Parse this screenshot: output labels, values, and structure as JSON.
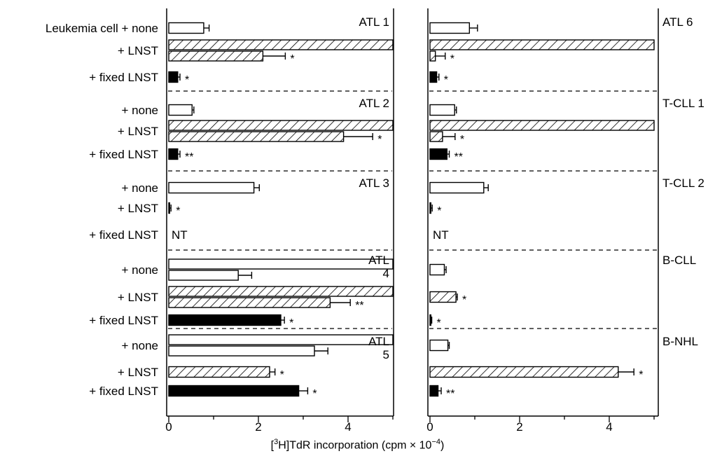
{
  "chart_data": {
    "type": "bar",
    "orientation": "horizontal",
    "xlabel": {
      "prefix": "[",
      "sup": "3",
      "main": "H]TdR incorporation (cpm × 10",
      "exp": "−4",
      "suffix": ")"
    },
    "xlim": [
      0,
      5
    ],
    "xticks": [
      "0",
      "2",
      "4"
    ],
    "not_tested_label": "NT",
    "series_styles": {
      "none": "open",
      "LNST": "hatched",
      "fixed LNST": "filled"
    },
    "row_labels": [
      "Leukemia cell + none",
      "+ LNST",
      "+ fixed LNST",
      "+ none",
      "+ LNST",
      "+ fixed LNST",
      "+ none",
      "+ LNST",
      "+ fixed LNST",
      "+ none",
      "+ LNST",
      "+ fixed LNST",
      "+ none",
      "+ LNST",
      "+ fixed LNST"
    ],
    "panels": [
      {
        "groups": [
          {
            "label": "ATL 1",
            "rows": [
              {
                "treatment": "none",
                "bars": [
                  {
                    "value": 0.78,
                    "error": 0.12
                  }
                ]
              },
              {
                "treatment": "LNST",
                "bars": [
                  {
                    "value": 5.0,
                    "error": null
                  },
                  {
                    "value": 2.1,
                    "error": 0.5,
                    "sig": "*"
                  }
                ]
              },
              {
                "treatment": "fixed LNST",
                "bars": [
                  {
                    "value": 0.2,
                    "error": 0.05,
                    "sig": "*"
                  }
                ]
              }
            ]
          },
          {
            "label": "ATL 2",
            "rows": [
              {
                "treatment": "none",
                "bars": [
                  {
                    "value": 0.52,
                    "error": 0.04
                  }
                ]
              },
              {
                "treatment": "LNST",
                "bars": [
                  {
                    "value": 5.0,
                    "error": null
                  },
                  {
                    "value": 3.9,
                    "error": 0.65,
                    "sig": "*"
                  }
                ]
              },
              {
                "treatment": "fixed LNST",
                "bars": [
                  {
                    "value": 0.2,
                    "error": 0.05,
                    "sig": "**"
                  }
                ]
              }
            ]
          },
          {
            "label": "ATL 3",
            "rows": [
              {
                "treatment": "none",
                "bars": [
                  {
                    "value": 1.9,
                    "error": 0.12
                  }
                ]
              },
              {
                "treatment": "LNST",
                "bars": [
                  {
                    "value": 0.02,
                    "error": 0.03,
                    "sig": "*"
                  }
                ]
              },
              {
                "treatment": "fixed LNST",
                "nt": true,
                "bars": []
              }
            ]
          },
          {
            "label": "ATL 4",
            "rows": [
              {
                "treatment": "none",
                "bars": [
                  {
                    "value": 5.0,
                    "error": null
                  },
                  {
                    "value": 1.55,
                    "error": 0.3
                  }
                ]
              },
              {
                "treatment": "LNST",
                "bars": [
                  {
                    "value": 5.0,
                    "error": null
                  },
                  {
                    "value": 3.6,
                    "error": 0.45,
                    "sig": "**"
                  }
                ]
              },
              {
                "treatment": "fixed LNST",
                "bars": [
                  {
                    "value": 2.5,
                    "error": 0.08,
                    "sig": "*"
                  }
                ]
              }
            ]
          },
          {
            "label": "ATL 5",
            "rows": [
              {
                "treatment": "none",
                "bars": [
                  {
                    "value": 5.0,
                    "error": null
                  },
                  {
                    "value": 3.25,
                    "error": 0.3
                  }
                ]
              },
              {
                "treatment": "LNST",
                "bars": [
                  {
                    "value": 2.25,
                    "error": 0.12,
                    "sig": "*"
                  }
                ]
              },
              {
                "treatment": "fixed LNST",
                "bars": [
                  {
                    "value": 2.9,
                    "error": 0.2,
                    "sig": "*"
                  }
                ]
              }
            ]
          }
        ]
      },
      {
        "groups": [
          {
            "label": "ATL 6",
            "rows": [
              {
                "treatment": "none",
                "bars": [
                  {
                    "value": 0.88,
                    "error": 0.18
                  }
                ]
              },
              {
                "treatment": "LNST",
                "bars": [
                  {
                    "value": 5.0,
                    "error": null
                  },
                  {
                    "value": 0.12,
                    "error": 0.22,
                    "sig": "*"
                  }
                ]
              },
              {
                "treatment": "fixed LNST",
                "bars": [
                  {
                    "value": 0.15,
                    "error": 0.05,
                    "sig": "*"
                  }
                ]
              }
            ]
          },
          {
            "label": "T-CLL 1",
            "rows": [
              {
                "treatment": "none",
                "bars": [
                  {
                    "value": 0.55,
                    "error": 0.04
                  }
                ]
              },
              {
                "treatment": "LNST",
                "bars": [
                  {
                    "value": 5.0,
                    "error": null
                  },
                  {
                    "value": 0.28,
                    "error": 0.28,
                    "sig": "*"
                  }
                ]
              },
              {
                "treatment": "fixed LNST",
                "bars": [
                  {
                    "value": 0.38,
                    "error": 0.05,
                    "sig": "**"
                  }
                ]
              }
            ]
          },
          {
            "label": "T-CLL 2",
            "rows": [
              {
                "treatment": "none",
                "bars": [
                  {
                    "value": 1.2,
                    "error": 0.1
                  }
                ]
              },
              {
                "treatment": "LNST",
                "bars": [
                  {
                    "value": 0.02,
                    "error": 0.03,
                    "sig": "*"
                  }
                ]
              },
              {
                "treatment": "fixed LNST",
                "nt": true,
                "bars": []
              }
            ]
          },
          {
            "label": "B-CLL",
            "rows": [
              {
                "treatment": "none",
                "bars": [
                  {
                    "value": 0.32,
                    "error": 0.04
                  }
                ]
              },
              {
                "treatment": "LNST",
                "bars": [
                  {
                    "value": 0.58,
                    "error": 0.03,
                    "sig": "*"
                  }
                ]
              },
              {
                "treatment": "fixed LNST",
                "bars": [
                  {
                    "value": 0.02,
                    "error": 0.02,
                    "sig": "*"
                  }
                ]
              }
            ]
          },
          {
            "label": "B-NHL",
            "rows": [
              {
                "treatment": "none",
                "bars": [
                  {
                    "value": 0.4,
                    "error": 0.03
                  }
                ]
              },
              {
                "treatment": "LNST",
                "bars": [
                  {
                    "value": 4.2,
                    "error": 0.35,
                    "sig": "*"
                  }
                ]
              },
              {
                "treatment": "fixed LNST",
                "bars": [
                  {
                    "value": 0.18,
                    "error": 0.07,
                    "sig": "**"
                  }
                ]
              }
            ]
          }
        ]
      }
    ]
  }
}
